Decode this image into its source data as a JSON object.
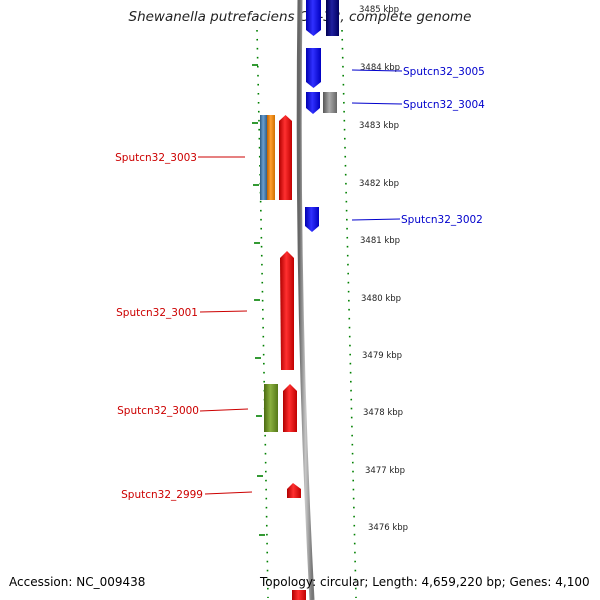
{
  "title": "Shewanella putrefaciens CN-32, complete genome",
  "accession_label": "Accession: NC_009438",
  "summary_label": "Topology: circular; Length: 4,659,220 bp; Genes: 4,100",
  "colors": {
    "reverse_cds": "#ff0000",
    "forward_cds": "#0000ff",
    "forward_dark": "#000080",
    "grey_feature": "#808080",
    "orange_feature": "#ff8c00",
    "steelblue_feature": "#4682b4",
    "olive_feature": "#6b8e23",
    "tick": "#008000",
    "backbone": "#808080"
  },
  "chart_data": {
    "type": "genome-map",
    "unit": "kbp",
    "axis_ticks": [
      "3485 kbp",
      "3484 kbp",
      "3483 kbp",
      "3482 kbp",
      "3481 kbp",
      "3480 kbp",
      "3479 kbp",
      "3478 kbp",
      "3477 kbp",
      "3476 kbp"
    ],
    "gene_labels": [
      {
        "name": "Sputcn32_3005",
        "strand": "forward"
      },
      {
        "name": "Sputcn32_3004",
        "strand": "forward"
      },
      {
        "name": "Sputcn32_3003",
        "strand": "reverse"
      },
      {
        "name": "Sputcn32_3002",
        "strand": "forward"
      },
      {
        "name": "Sputcn32_3001",
        "strand": "reverse"
      },
      {
        "name": "Sputcn32_3000",
        "strand": "reverse"
      },
      {
        "name": "Sputcn32_2999",
        "strand": "reverse"
      }
    ]
  }
}
